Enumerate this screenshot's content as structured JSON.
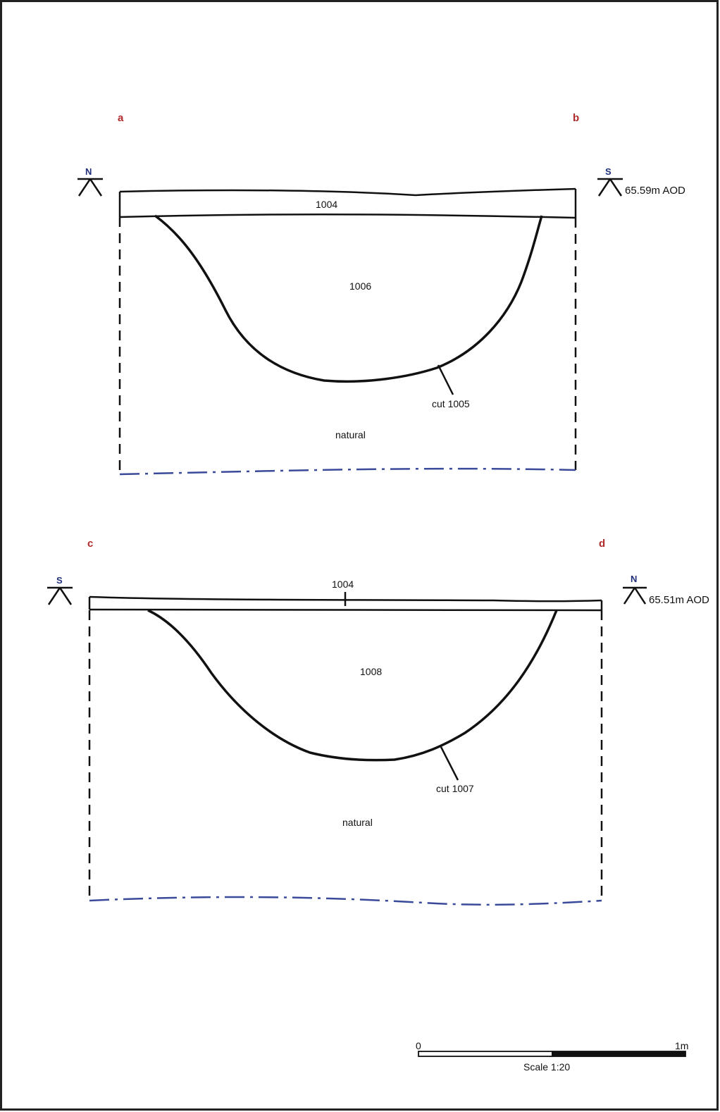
{
  "section_1": {
    "corner_left": "a",
    "corner_right": "b",
    "left_direction": "N",
    "right_direction": "S",
    "datum": "65.59m AOD",
    "layer_top": "1004",
    "fill": "1006",
    "cut": "cut 1005",
    "natural": "natural"
  },
  "section_2": {
    "corner_left": "c",
    "corner_right": "d",
    "left_direction": "S",
    "right_direction": "N",
    "datum": "65.51m AOD",
    "layer_top": "1004",
    "fill": "1008",
    "cut": "cut 1007",
    "natural": "natural"
  },
  "scale_bar": {
    "start": "0",
    "end": "1m",
    "label": "Scale 1:20"
  },
  "colors": {
    "line": "#111111",
    "corner_label": "#b02a2a",
    "direction_label": "#1f2f7a",
    "base_line": "#3a4a9a"
  }
}
